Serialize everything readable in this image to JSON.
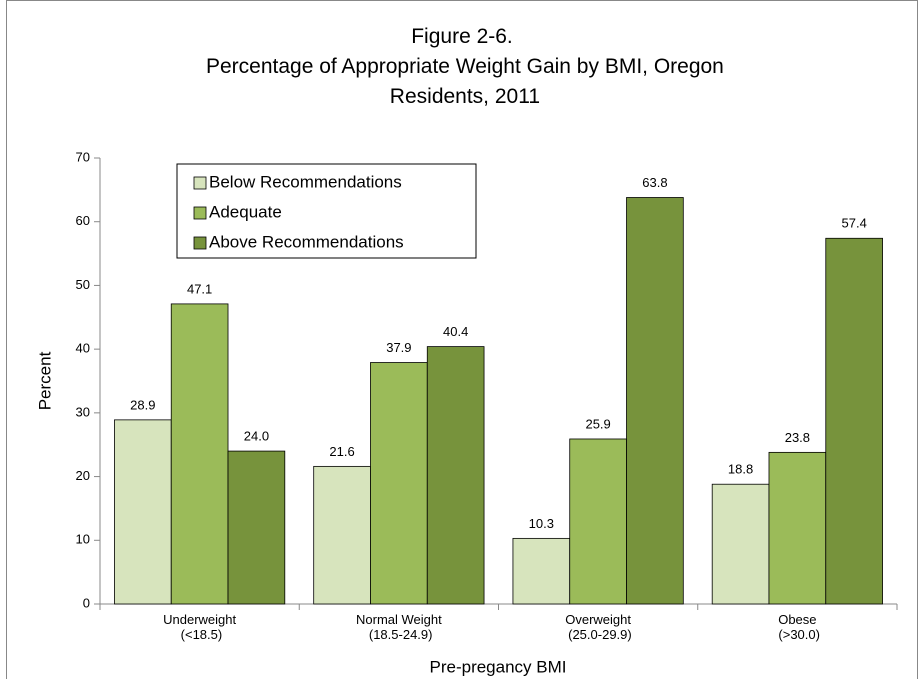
{
  "chart_data": {
    "type": "bar",
    "title": "Figure 2-6.\nPercentage of Appropriate Weight Gain by BMI, Oregon\nResidents, 2011",
    "x_label": "Pre-pregancy BMI",
    "y_label": "Percent",
    "categories": [
      "Underweight\n(<18.5)",
      "Normal Weight\n(18.5-24.9)",
      "Overweight\n(25.0-29.9)",
      "Obese\n(>30.0)"
    ],
    "series": [
      {
        "name": "Below Recommendations",
        "color": "#d7e4bd",
        "values": [
          28.9,
          21.6,
          10.3,
          18.8
        ],
        "value_labels": [
          "28.9",
          "21.6",
          "10.3",
          "18.8"
        ]
      },
      {
        "name": "Adequate",
        "color": "#9bbb59",
        "values": [
          47.1,
          37.9,
          25.9,
          23.8
        ],
        "value_labels": [
          "47.1",
          "37.9",
          "25.9",
          "23.8"
        ]
      },
      {
        "name": "Above Recommendations",
        "color": "#77933c",
        "values": [
          24,
          40.4,
          63.8,
          57.4
        ],
        "value_labels": [
          "24.0",
          "40.4",
          "63.8",
          "57.4"
        ]
      }
    ],
    "ylim": [
      0,
      70
    ],
    "yticks": [
      0,
      10,
      20,
      30,
      40,
      50,
      60,
      70
    ],
    "legend": "upper-left"
  }
}
